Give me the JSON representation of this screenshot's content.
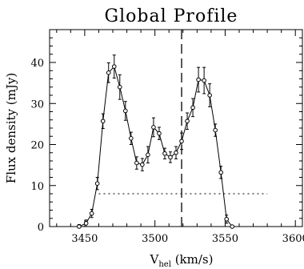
{
  "chart_data": {
    "type": "line",
    "title": "Global Profile",
    "xlabel_main": "V",
    "xlabel_sub": "hel",
    "xlabel_rest": " (km/s)",
    "ylabel": "Flux density (mJy)",
    "xlim": [
      3425,
      3605
    ],
    "ylim": [
      0,
      48
    ],
    "xticks": [
      3450,
      3500,
      3550,
      3600
    ],
    "yticks": [
      0,
      10,
      20,
      30,
      40
    ],
    "grid": false,
    "series": [
      {
        "x": [
          3446,
          3451,
          3455,
          3459,
          3463,
          3467,
          3471,
          3475,
          3479,
          3483,
          3487,
          3491,
          3495,
          3499,
          3503,
          3507,
          3511,
          3515,
          3519,
          3523,
          3527,
          3531,
          3535,
          3539,
          3543,
          3547,
          3551,
          3555,
          3559,
          3563,
          3567,
          3571,
          3575,
          3579,
          3583,
          3587
        ],
        "y": [
          0,
          0.8,
          3.2,
          10.5,
          25.7,
          37.5,
          39,
          34,
          28.2,
          21.5,
          15.5,
          15.1,
          17.5,
          24.2,
          22.7,
          17.8,
          16.9,
          18,
          20.8,
          25.7,
          29,
          35.8,
          35.6,
          32,
          23.5,
          13.2,
          1.8,
          0,
          0,
          0,
          0,
          0,
          0,
          0,
          0,
          0
        ],
        "err": [
          0.5,
          0.8,
          1,
          1.5,
          1.8,
          2.4,
          2.8,
          3,
          2.3,
          1.5,
          1.5,
          1.5,
          2,
          2.3,
          1.5,
          1.3,
          1.3,
          1.5,
          2,
          2,
          2.2,
          3,
          3.2,
          2.8,
          1.5,
          1.5,
          1,
          0.5,
          0.5,
          0.5,
          0.5,
          0.5,
          0.5,
          0.5,
          0.5,
          0.5
        ]
      }
    ],
    "vertical_line_x": 3519,
    "horizontal_dotted": {
      "y": 8,
      "x_start": 3460,
      "x_end": 3580
    }
  }
}
